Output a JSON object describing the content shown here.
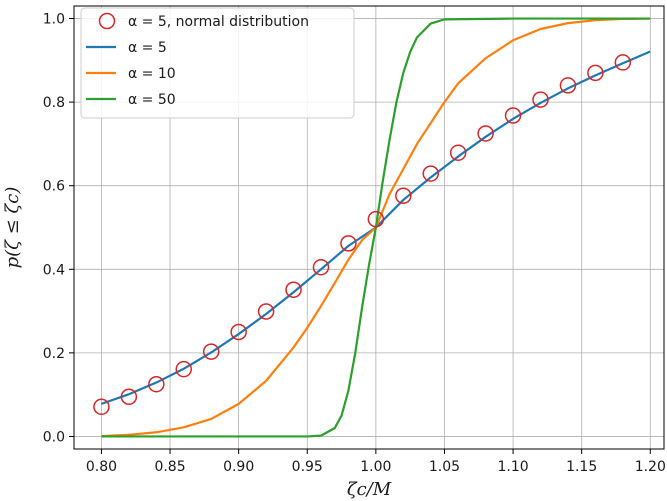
{
  "chart_data": {
    "type": "line",
    "title": "",
    "xlabel": "ζc/M",
    "ylabel": "p(ζ ≤ ζc)",
    "xlim": [
      0.78,
      1.21
    ],
    "ylim": [
      -0.03,
      1.03
    ],
    "grid": true,
    "legend_position": "top-left",
    "x_ticks": [
      0.8,
      0.85,
      0.9,
      0.95,
      1.0,
      1.05,
      1.1,
      1.15,
      1.2
    ],
    "x_tick_labels": [
      "0.80",
      "0.85",
      "0.90",
      "0.95",
      "1.00",
      "1.05",
      "1.10",
      "1.15",
      "1.20"
    ],
    "y_ticks": [
      0.0,
      0.2,
      0.4,
      0.6,
      0.8,
      1.0
    ],
    "y_tick_labels": [
      "0.0",
      "0.2",
      "0.4",
      "0.6",
      "0.8",
      "1.0"
    ],
    "series": [
      {
        "name": "α = 5, normal distribution",
        "kind": "scatter",
        "color": "#d62728",
        "x": [
          0.8,
          0.82,
          0.84,
          0.86,
          0.88,
          0.9,
          0.92,
          0.94,
          0.96,
          0.98,
          1.0,
          1.02,
          1.04,
          1.06,
          1.08,
          1.1,
          1.12,
          1.14,
          1.16,
          1.18
        ],
        "y": [
          0.071,
          0.095,
          0.125,
          0.161,
          0.203,
          0.25,
          0.299,
          0.351,
          0.405,
          0.462,
          0.52,
          0.576,
          0.629,
          0.679,
          0.725,
          0.768,
          0.806,
          0.84,
          0.87,
          0.895
        ]
      },
      {
        "name": "α = 5",
        "kind": "line",
        "color": "#1f77b4",
        "x": [
          0.8,
          0.82,
          0.84,
          0.86,
          0.88,
          0.9,
          0.92,
          0.94,
          0.96,
          0.98,
          1.0,
          1.02,
          1.04,
          1.06,
          1.08,
          1.1,
          1.12,
          1.14,
          1.16,
          1.18,
          1.2
        ],
        "y": [
          0.078,
          0.101,
          0.129,
          0.162,
          0.201,
          0.245,
          0.293,
          0.345,
          0.4,
          0.456,
          0.5,
          0.566,
          0.62,
          0.67,
          0.717,
          0.76,
          0.798,
          0.833,
          0.864,
          0.893,
          0.921
        ]
      },
      {
        "name": "α = 10",
        "kind": "line",
        "color": "#ff7f0e",
        "x": [
          0.8,
          0.82,
          0.84,
          0.86,
          0.88,
          0.9,
          0.92,
          0.94,
          0.95,
          0.96,
          0.97,
          0.98,
          0.99,
          1.0,
          1.01,
          1.02,
          1.03,
          1.04,
          1.05,
          1.06,
          1.08,
          1.1,
          1.12,
          1.14,
          1.16,
          1.18,
          1.2
        ],
        "y": [
          0.001,
          0.004,
          0.01,
          0.022,
          0.042,
          0.078,
          0.133,
          0.213,
          0.26,
          0.312,
          0.367,
          0.423,
          0.47,
          0.5,
          0.58,
          0.64,
          0.7,
          0.75,
          0.8,
          0.845,
          0.905,
          0.948,
          0.975,
          0.989,
          0.996,
          0.999,
          1.0
        ]
      },
      {
        "name": "α = 50",
        "kind": "line",
        "color": "#2ca02c",
        "x": [
          0.8,
          0.9,
          0.95,
          0.96,
          0.97,
          0.975,
          0.98,
          0.985,
          0.99,
          0.995,
          1.0,
          1.005,
          1.01,
          1.015,
          1.02,
          1.025,
          1.03,
          1.04,
          1.05,
          1.1,
          1.2
        ],
        "y": [
          0.0,
          0.0,
          0.0,
          0.002,
          0.02,
          0.05,
          0.11,
          0.2,
          0.31,
          0.41,
          0.5,
          0.61,
          0.71,
          0.8,
          0.87,
          0.92,
          0.955,
          0.988,
          0.998,
          1.0,
          1.0
        ]
      }
    ]
  }
}
